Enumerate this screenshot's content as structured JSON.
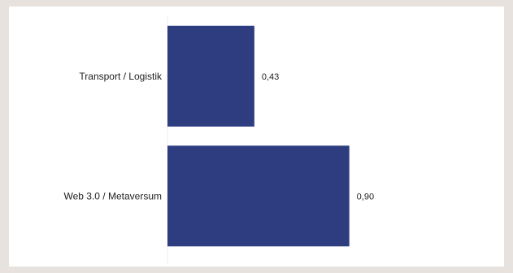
{
  "chart_data": {
    "type": "bar",
    "orientation": "horizontal",
    "categories": [
      "Transport / Logistik",
      "Web 3.0 / Metaversum"
    ],
    "values": [
      0.43,
      0.9
    ],
    "value_labels": [
      "0,43",
      "0,90"
    ],
    "xlim": [
      0,
      1.36
    ],
    "bar_color": "#2e3d80",
    "grid": false,
    "legend": "none"
  }
}
